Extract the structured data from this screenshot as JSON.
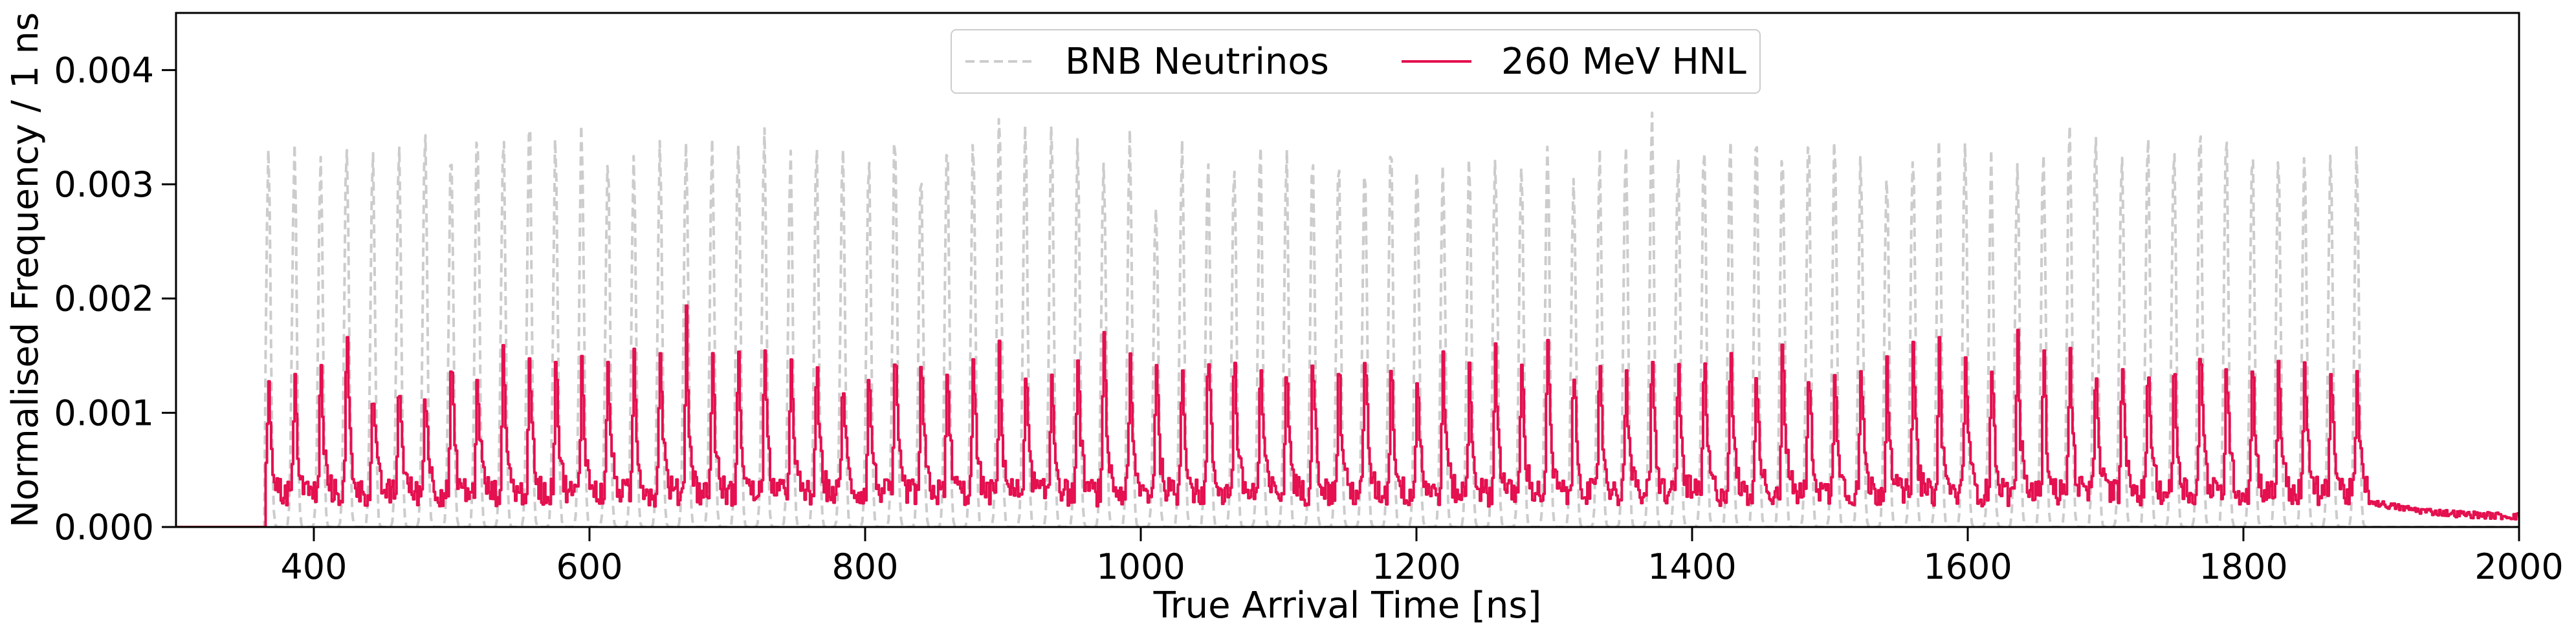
{
  "chart_data": {
    "type": "line",
    "title": "",
    "xlabel": "True Arrival Time [ns]",
    "ylabel": "Normalised Frequency / 1 ns",
    "xlim": [
      300,
      2000
    ],
    "ylim": [
      0,
      0.0045
    ],
    "xticks": [
      {
        "value": 400,
        "label": "400"
      },
      {
        "value": 600,
        "label": "600"
      },
      {
        "value": 800,
        "label": "800"
      },
      {
        "value": 1000,
        "label": "1000"
      },
      {
        "value": 1200,
        "label": "1200"
      },
      {
        "value": 1400,
        "label": "1400"
      },
      {
        "value": 1600,
        "label": "1600"
      },
      {
        "value": 1800,
        "label": "1800"
      },
      {
        "value": 2000,
        "label": "2000"
      }
    ],
    "yticks": [
      {
        "value": 0.0,
        "label": "0.000"
      },
      {
        "value": 0.001,
        "label": "0.001"
      },
      {
        "value": 0.002,
        "label": "0.002"
      },
      {
        "value": 0.003,
        "label": "0.003"
      },
      {
        "value": 0.004,
        "label": "0.004"
      }
    ],
    "grid": false,
    "legend_position": "top-center",
    "bunch_train": {
      "first_bunch_ns": 367,
      "bunch_spacing_ns": 18.94,
      "n_bunches": 81
    },
    "series": [
      {
        "name": "BNB Neutrinos",
        "color": "#cccccc",
        "style": "dashed",
        "bunch_peak_heights": [
          0.0034,
          0.0035,
          0.0034,
          0.0036,
          0.0034,
          0.0035,
          0.0036,
          0.0035,
          0.0037,
          0.0036,
          0.0038,
          0.0035,
          0.0036,
          0.0034,
          0.0034,
          0.0035,
          0.0035,
          0.0034,
          0.0035,
          0.0036,
          0.0034,
          0.0034,
          0.0034,
          0.0033,
          0.0036,
          0.0033,
          0.0035,
          0.0035,
          0.0037,
          0.0036,
          0.0037,
          0.0035,
          0.0034,
          0.0035,
          0.003,
          0.0034,
          0.0034,
          0.0034,
          0.0035,
          0.0034,
          0.0034,
          0.0035,
          0.0034,
          0.0036,
          0.0034,
          0.0033,
          0.0035,
          0.0035,
          0.0034,
          0.0035,
          0.0033,
          0.0034,
          0.0035,
          0.0037,
          0.0033,
          0.0035,
          0.0035,
          0.0036,
          0.0035,
          0.0035,
          0.0035,
          0.0034,
          0.0033,
          0.0035,
          0.0035,
          0.0036,
          0.0034,
          0.0034,
          0.0035,
          0.0036,
          0.0037,
          0.0035,
          0.0035,
          0.0035,
          0.0036,
          0.0036,
          0.0035,
          0.0034,
          0.0034,
          0.0035,
          0.0034
        ]
      },
      {
        "name": "260 MeV HNL",
        "color": "#e4104f",
        "style": "solid",
        "bunch_peak_heights": [
          0.0014,
          0.0014,
          0.0015,
          0.0018,
          0.0013,
          0.0015,
          0.0014,
          0.0016,
          0.0015,
          0.0017,
          0.0016,
          0.0017,
          0.0016,
          0.0016,
          0.0016,
          0.0017,
          0.0019,
          0.0016,
          0.0016,
          0.0016,
          0.0016,
          0.0016,
          0.0015,
          0.0015,
          0.0016,
          0.0016,
          0.0015,
          0.0016,
          0.0016,
          0.0015,
          0.0015,
          0.0016,
          0.0018,
          0.0015,
          0.0016,
          0.0016,
          0.0017,
          0.0017,
          0.0016,
          0.0016,
          0.0018,
          0.0016,
          0.0017,
          0.0016,
          0.0015,
          0.0016,
          0.0015,
          0.0017,
          0.0016,
          0.0017,
          0.0015,
          0.0016,
          0.0016,
          0.0016,
          0.0016,
          0.0016,
          0.0017,
          0.0016,
          0.0017,
          0.0016,
          0.0016,
          0.0016,
          0.0016,
          0.0017,
          0.0016,
          0.0017,
          0.0016,
          0.0017,
          0.0016,
          0.0017,
          0.0016,
          0.0016,
          0.0017,
          0.0016,
          0.0018,
          0.0017,
          0.0016,
          0.0016,
          0.0016,
          0.0016,
          0.0014
        ],
        "baseline_between_bunches": 0.0003,
        "tail_after_train": 0.00015
      }
    ]
  }
}
